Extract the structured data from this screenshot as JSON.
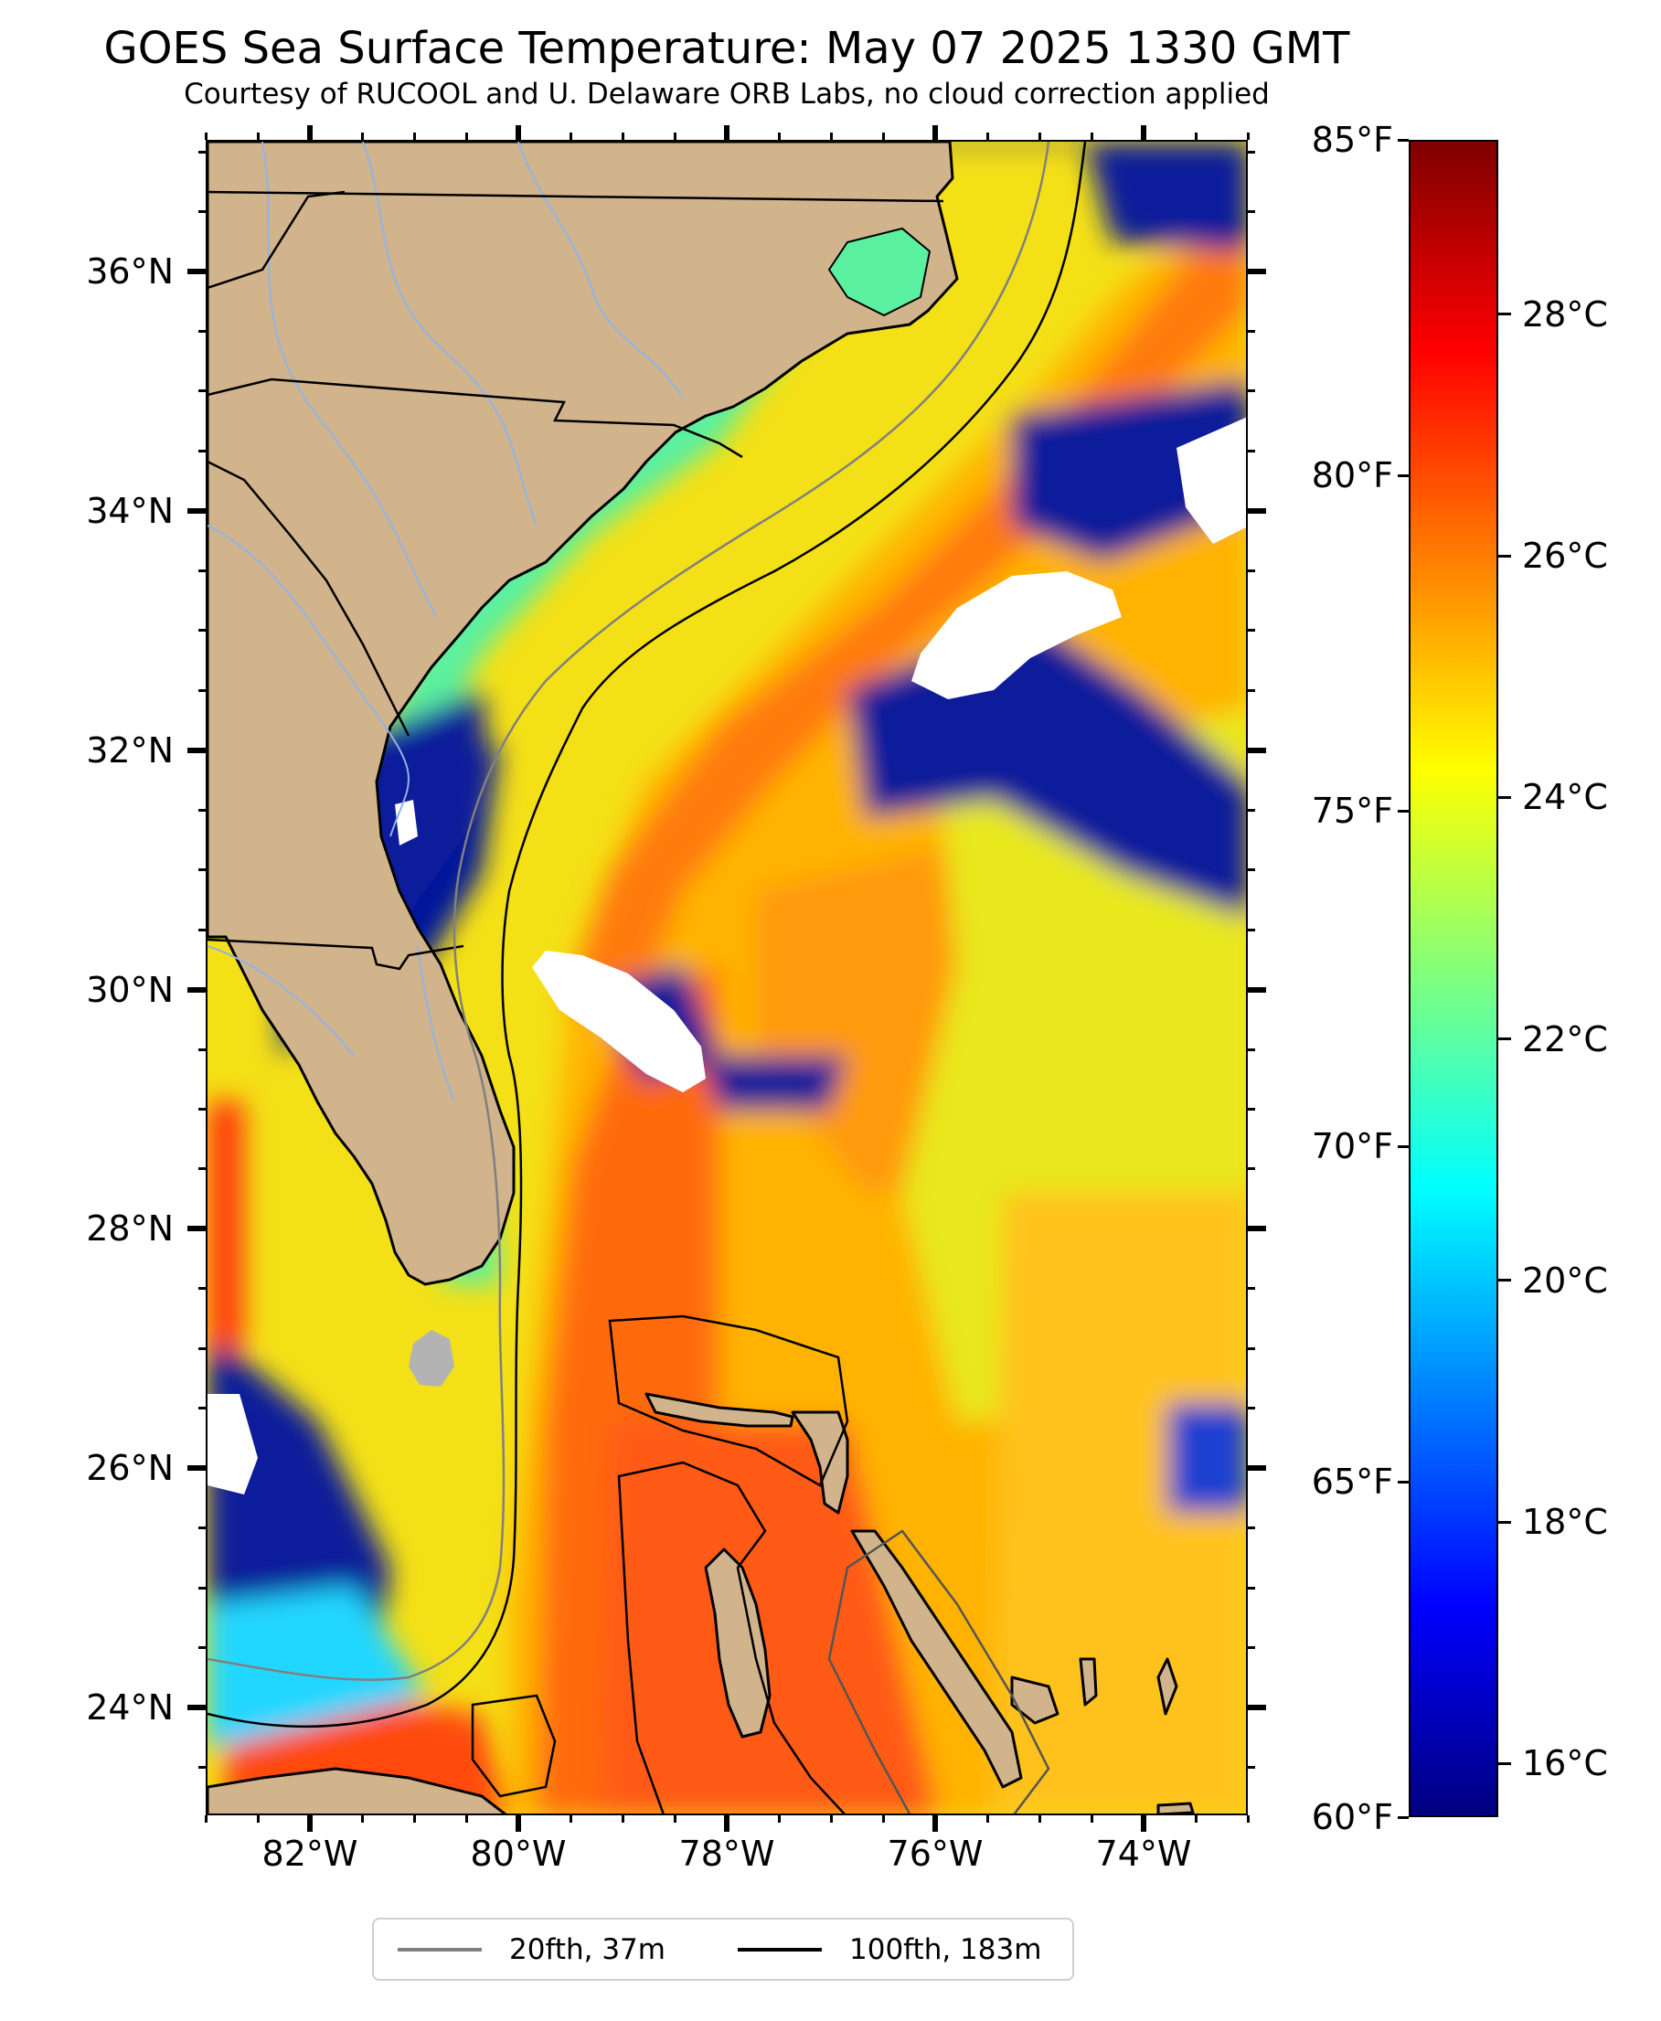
{
  "title": "GOES Sea Surface Temperature: May 07 2025 1330 GMT",
  "subtitle": "Courtesy of RUCOOL and U. Delaware ORB Labs, no cloud correction applied",
  "map": {
    "lat_labels": [
      "36°N",
      "34°N",
      "32°N",
      "30°N",
      "28°N",
      "26°N",
      "24°N"
    ],
    "lon_labels": [
      "82°W",
      "80°W",
      "78°W",
      "76°W",
      "74°W"
    ],
    "lat_range": [
      23.1,
      37.1
    ],
    "lon_range": [
      -83.0,
      -73.0
    ],
    "colors": {
      "land": "#d2b48c",
      "no_data": "#ffffff",
      "lake": "#b3b3b3",
      "rivers": "#8fb4e6",
      "borders": "#000000"
    }
  },
  "colorbar": {
    "celsius_labels": [
      "28°C",
      "26°C",
      "24°C",
      "22°C",
      "20°C",
      "18°C",
      "16°C"
    ],
    "fahrenheit_labels": [
      "85°F",
      "80°F",
      "75°F",
      "70°F",
      "65°F",
      "60°F"
    ],
    "fahrenheit_range": [
      60,
      85
    ],
    "colormap": "jet"
  },
  "legend": {
    "items": [
      {
        "label": "20fth, 37m",
        "color": "#808080"
      },
      {
        "label": "100fth, 183m",
        "color": "#000000"
      }
    ]
  }
}
